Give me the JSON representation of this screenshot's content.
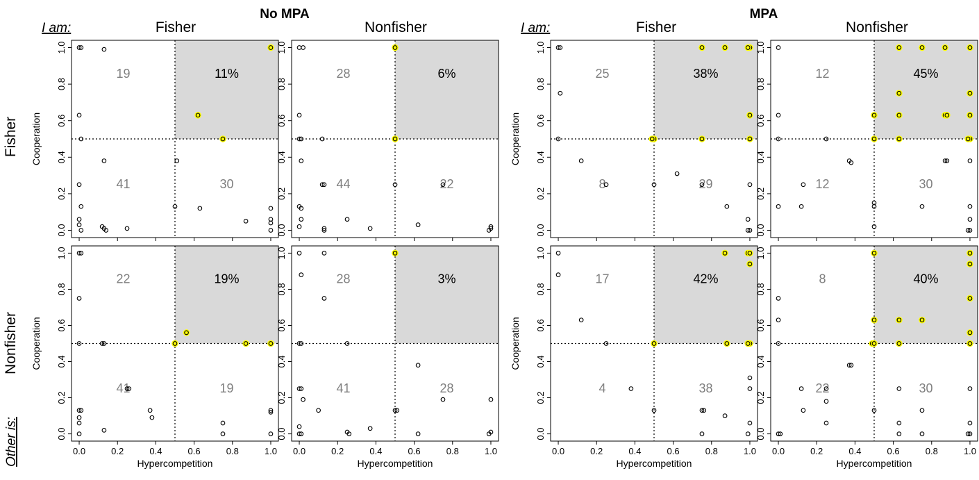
{
  "group_titles": [
    "No MPA",
    "MPA"
  ],
  "col_titles": [
    "Fisher",
    "Nonfisher",
    "Fisher",
    "Nonfisher"
  ],
  "row_titles": [
    "Fisher",
    "Nonfisher"
  ],
  "i_am_label": "I am:",
  "other_is_label": "Other is:",
  "colors": {
    "shade": "#d9d9d9",
    "highlight": "#ffff00",
    "point": "#000000",
    "count_text": "#7f7f7f"
  },
  "chart_data": [
    {
      "type": "scatter",
      "group": "No MPA",
      "i_am": "Fisher",
      "other_is": "Fisher",
      "xlabel": "",
      "ylabel": "Cooperation",
      "xlim": [
        0,
        1
      ],
      "ylim": [
        0,
        1
      ],
      "quadrant_labels": {
        "top_left": "19",
        "top_right": "11%",
        "bottom_left": "41",
        "bottom_right": "30"
      },
      "points": [
        [
          0,
          1
        ],
        [
          0.01,
          1
        ],
        [
          0.13,
          0.99
        ],
        [
          0,
          0.63
        ],
        [
          0.01,
          0.5
        ],
        [
          0.13,
          0.38
        ],
        [
          0,
          0.25
        ],
        [
          0.01,
          0.13
        ],
        [
          0,
          0.06
        ],
        [
          0,
          0.03
        ],
        [
          0.01,
          0
        ],
        [
          0.12,
          0.02
        ],
        [
          0.13,
          0.01
        ],
        [
          0.14,
          0
        ],
        [
          0.25,
          0.01
        ],
        [
          0.5,
          0.13
        ],
        [
          0.51,
          0.38
        ],
        [
          0.63,
          0.12
        ],
        [
          0.87,
          0.05
        ],
        [
          1,
          0.12
        ],
        [
          1,
          0.06
        ],
        [
          1,
          0.04
        ],
        [
          1,
          0
        ]
      ],
      "highlighted": [
        [
          1,
          1
        ],
        [
          0.62,
          0.63
        ],
        [
          0.75,
          0.5
        ]
      ]
    },
    {
      "type": "scatter",
      "group": "No MPA",
      "i_am": "Nonfisher",
      "other_is": "Fisher",
      "xlabel": "",
      "ylabel": "",
      "xlim": [
        0,
        1
      ],
      "ylim": [
        0,
        1
      ],
      "quadrant_labels": {
        "top_left": "28",
        "top_right": "6%",
        "bottom_left": "44",
        "bottom_right": "22"
      },
      "points": [
        [
          0,
          1
        ],
        [
          0.02,
          1
        ],
        [
          0,
          0.63
        ],
        [
          0,
          0.5
        ],
        [
          0.01,
          0.5
        ],
        [
          0.12,
          0.5
        ],
        [
          0.01,
          0.38
        ],
        [
          0.12,
          0.25
        ],
        [
          0.13,
          0.25
        ],
        [
          0,
          0.13
        ],
        [
          0.01,
          0.12
        ],
        [
          0.01,
          0.06
        ],
        [
          0,
          0.02
        ],
        [
          0.13,
          0.01
        ],
        [
          0.13,
          0
        ],
        [
          0.25,
          0.06
        ],
        [
          0.37,
          0.01
        ],
        [
          0.5,
          0.25
        ],
        [
          0.62,
          0.03
        ],
        [
          0.75,
          0.25
        ],
        [
          0.99,
          0
        ],
        [
          1,
          0.01
        ],
        [
          1,
          0.02
        ]
      ],
      "highlighted": [
        [
          0.5,
          1
        ],
        [
          0.5,
          0.5
        ]
      ]
    },
    {
      "type": "scatter",
      "group": "MPA",
      "i_am": "Fisher",
      "other_is": "Fisher",
      "xlabel": "",
      "ylabel": "Cooperation",
      "xlim": [
        0,
        1
      ],
      "ylim": [
        0,
        1
      ],
      "quadrant_labels": {
        "top_left": "25",
        "top_right": "38%",
        "bottom_left": "8",
        "bottom_right": "29"
      },
      "points": [
        [
          0,
          1
        ],
        [
          0.01,
          1
        ],
        [
          0.01,
          0.75
        ],
        [
          0,
          0.5
        ],
        [
          0.12,
          0.38
        ],
        [
          0.25,
          0.25
        ],
        [
          0.5,
          0.25
        ],
        [
          0.62,
          0.31
        ],
        [
          0.75,
          0.25
        ],
        [
          0.88,
          0.13
        ],
        [
          1,
          0.25
        ],
        [
          0.99,
          0.06
        ],
        [
          1,
          0
        ],
        [
          0.99,
          0
        ]
      ],
      "highlighted": [
        [
          0.75,
          1
        ],
        [
          0.87,
          1
        ],
        [
          1,
          1
        ],
        [
          0.99,
          1
        ],
        [
          1,
          0.63
        ],
        [
          0.5,
          0.5
        ],
        [
          0.49,
          0.5
        ],
        [
          0.75,
          0.5
        ],
        [
          1,
          0.5
        ]
      ]
    },
    {
      "type": "scatter",
      "group": "MPA",
      "i_am": "Nonfisher",
      "other_is": "Fisher",
      "xlabel": "",
      "ylabel": "",
      "xlim": [
        0,
        1
      ],
      "ylim": [
        0,
        1
      ],
      "quadrant_labels": {
        "top_left": "12",
        "top_right": "45%",
        "bottom_left": "12",
        "bottom_right": "30"
      },
      "points": [
        [
          0,
          1
        ],
        [
          0,
          0.63
        ],
        [
          0,
          0.5
        ],
        [
          0,
          0.13
        ],
        [
          0.13,
          0.25
        ],
        [
          0.12,
          0.13
        ],
        [
          0.25,
          0.5
        ],
        [
          0.37,
          0.38
        ],
        [
          0.38,
          0.37
        ],
        [
          0.5,
          0.15
        ],
        [
          0.5,
          0.13
        ],
        [
          0.5,
          0.02
        ],
        [
          0.75,
          0.13
        ],
        [
          0.87,
          0.38
        ],
        [
          0.88,
          0.38
        ],
        [
          1,
          0.38
        ],
        [
          1,
          0.13
        ],
        [
          1,
          0.06
        ],
        [
          1,
          0
        ],
        [
          0.99,
          0
        ]
      ],
      "highlighted": [
        [
          0.63,
          1
        ],
        [
          0.75,
          1
        ],
        [
          0.87,
          1
        ],
        [
          1,
          1
        ],
        [
          0.63,
          0.75
        ],
        [
          1,
          0.75
        ],
        [
          0.5,
          0.63
        ],
        [
          0.63,
          0.63
        ],
        [
          0.87,
          0.63
        ],
        [
          0.88,
          0.63
        ],
        [
          1,
          0.63
        ],
        [
          0.5,
          0.5
        ],
        [
          0.63,
          0.5
        ],
        [
          1,
          0.5
        ],
        [
          0.99,
          0.5
        ]
      ]
    },
    {
      "type": "scatter",
      "group": "No MPA",
      "i_am": "Fisher",
      "other_is": "Nonfisher",
      "xlabel": "Hypercompetition",
      "ylabel": "Cooperation",
      "xlim": [
        0,
        1
      ],
      "ylim": [
        0,
        1
      ],
      "quadrant_labels": {
        "top_left": "22",
        "top_right": "19%",
        "bottom_left": "41",
        "bottom_right": "19"
      },
      "points": [
        [
          0,
          1
        ],
        [
          0.01,
          1
        ],
        [
          0,
          0.75
        ],
        [
          0,
          0.5
        ],
        [
          0.12,
          0.5
        ],
        [
          0.13,
          0.5
        ],
        [
          0,
          0.13
        ],
        [
          0.01,
          0.13
        ],
        [
          0,
          0.09
        ],
        [
          0,
          0.06
        ],
        [
          0,
          0
        ],
        [
          0.13,
          0.02
        ],
        [
          0.25,
          0.25
        ],
        [
          0.26,
          0.25
        ],
        [
          0.37,
          0.13
        ],
        [
          0.38,
          0.09
        ],
        [
          0.75,
          0.06
        ],
        [
          0.75,
          0
        ],
        [
          1,
          0.13
        ],
        [
          1,
          0.12
        ],
        [
          1,
          0
        ]
      ],
      "highlighted": [
        [
          0.5,
          0.5
        ],
        [
          0.56,
          0.56
        ],
        [
          0.87,
          0.5
        ],
        [
          1,
          0.5
        ]
      ]
    },
    {
      "type": "scatter",
      "group": "No MPA",
      "i_am": "Nonfisher",
      "other_is": "Nonfisher",
      "xlabel": "Hypercompetition",
      "ylabel": "",
      "xlim": [
        0,
        1
      ],
      "ylim": [
        0,
        1
      ],
      "quadrant_labels": {
        "top_left": "28",
        "top_right": "3%",
        "bottom_left": "41",
        "bottom_right": "28"
      },
      "points": [
        [
          0,
          1
        ],
        [
          0.13,
          1
        ],
        [
          0.01,
          0.88
        ],
        [
          0.13,
          0.75
        ],
        [
          0,
          0.5
        ],
        [
          0.01,
          0.5
        ],
        [
          0.25,
          0.5
        ],
        [
          0,
          0.25
        ],
        [
          0.01,
          0.25
        ],
        [
          0.02,
          0.19
        ],
        [
          0,
          0.04
        ],
        [
          0,
          0
        ],
        [
          0.01,
          0
        ],
        [
          0.1,
          0.13
        ],
        [
          0.25,
          0.01
        ],
        [
          0.26,
          0
        ],
        [
          0.37,
          0.03
        ],
        [
          0.5,
          0.13
        ],
        [
          0.51,
          0.13
        ],
        [
          0.62,
          0.38
        ],
        [
          0.62,
          0
        ],
        [
          0.75,
          0.19
        ],
        [
          1,
          0.19
        ],
        [
          1,
          0.01
        ],
        [
          0.99,
          0
        ]
      ],
      "highlighted": [
        [
          0.5,
          1
        ]
      ]
    },
    {
      "type": "scatter",
      "group": "MPA",
      "i_am": "Fisher",
      "other_is": "Nonfisher",
      "xlabel": "Hypercompetition",
      "ylabel": "Cooperation",
      "xlim": [
        0,
        1
      ],
      "ylim": [
        0,
        1
      ],
      "quadrant_labels": {
        "top_left": "17",
        "top_right": "42%",
        "bottom_left": "4",
        "bottom_right": "38"
      },
      "points": [
        [
          0,
          1
        ],
        [
          0,
          0.88
        ],
        [
          0.12,
          0.63
        ],
        [
          0.25,
          0.5
        ],
        [
          0.38,
          0.25
        ],
        [
          0.5,
          0.13
        ],
        [
          0.75,
          0.13
        ],
        [
          0.76,
          0.13
        ],
        [
          0.87,
          0.1
        ],
        [
          1,
          0.31
        ],
        [
          1,
          0.25
        ],
        [
          1,
          0.06
        ],
        [
          0.99,
          0
        ],
        [
          0.75,
          0
        ]
      ],
      "highlighted": [
        [
          0.87,
          1
        ],
        [
          0.99,
          1
        ],
        [
          1,
          1
        ],
        [
          1,
          0.94
        ],
        [
          0.5,
          0.5
        ],
        [
          0.88,
          0.5
        ],
        [
          1,
          0.5
        ],
        [
          0.99,
          0.5
        ]
      ]
    },
    {
      "type": "scatter",
      "group": "MPA",
      "i_am": "Nonfisher",
      "other_is": "Nonfisher",
      "xlabel": "Hypercompetition",
      "ylabel": "",
      "xlim": [
        0,
        1
      ],
      "ylim": [
        0,
        1
      ],
      "quadrant_labels": {
        "top_left": "8",
        "top_right": "40%",
        "bottom_left": "22",
        "bottom_right": "30"
      },
      "points": [
        [
          0,
          0.75
        ],
        [
          0,
          0.63
        ],
        [
          0,
          0.5
        ],
        [
          0,
          0
        ],
        [
          0.01,
          0
        ],
        [
          0.12,
          0.25
        ],
        [
          0.13,
          0.13
        ],
        [
          0.25,
          0.25
        ],
        [
          0.25,
          0.18
        ],
        [
          0.25,
          0.06
        ],
        [
          0.37,
          0.38
        ],
        [
          0.38,
          0.38
        ],
        [
          0.5,
          0.13
        ],
        [
          0.63,
          0.25
        ],
        [
          0.63,
          0.06
        ],
        [
          0.63,
          0
        ],
        [
          0.75,
          0.13
        ],
        [
          0.75,
          0
        ],
        [
          1,
          0.25
        ],
        [
          1,
          0.06
        ],
        [
          0.99,
          0
        ],
        [
          1,
          0
        ]
      ],
      "highlighted": [
        [
          0.5,
          1
        ],
        [
          1,
          1
        ],
        [
          1,
          0.94
        ],
        [
          1,
          0.75
        ],
        [
          0.5,
          0.63
        ],
        [
          0.63,
          0.63
        ],
        [
          0.75,
          0.63
        ],
        [
          0.49,
          0.5
        ],
        [
          0.5,
          0.5
        ],
        [
          0.63,
          0.5
        ],
        [
          1,
          0.56
        ],
        [
          1,
          0.5
        ]
      ]
    }
  ]
}
